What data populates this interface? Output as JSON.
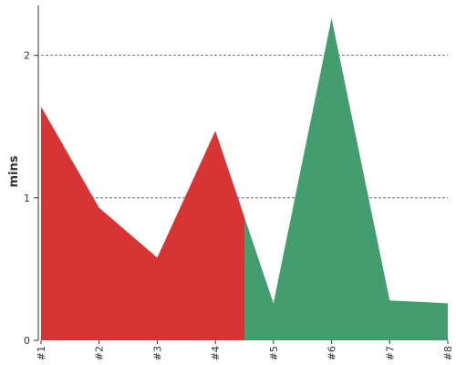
{
  "chart_data": {
    "type": "area",
    "title": "",
    "xlabel": "",
    "ylabel": "mins",
    "categories": [
      "#1",
      "#2",
      "#3",
      "#4",
      "#5",
      "#6",
      "#7",
      "#8"
    ],
    "values": [
      1.64,
      0.93,
      0.58,
      1.47,
      0.26,
      2.26,
      0.28,
      0.26
    ],
    "threshold_x": 3.5,
    "ylim": [
      0,
      2.35
    ],
    "yticks": [
      0,
      1,
      2
    ],
    "gridlines": [
      1,
      2
    ],
    "grid": true,
    "legend": "none",
    "colors": {
      "before_threshold": "#d73535",
      "after_threshold": "#449d6f",
      "grid": "#555555",
      "axis": "#333333"
    }
  }
}
